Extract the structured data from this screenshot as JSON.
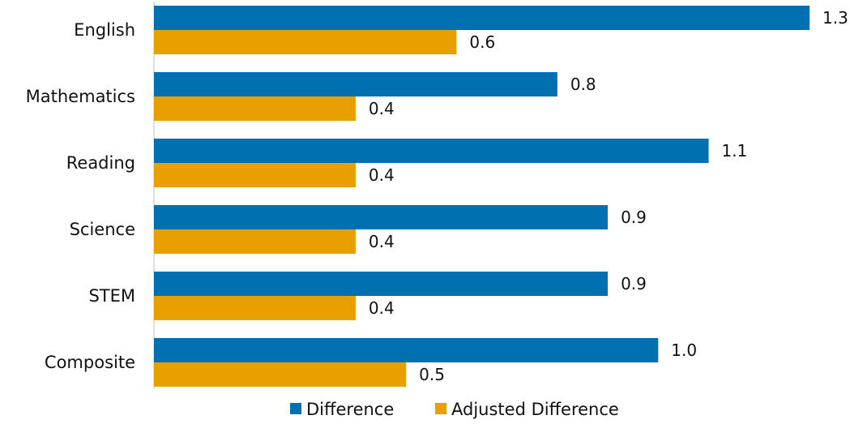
{
  "chart_data": {
    "type": "bar",
    "orientation": "horizontal",
    "categories": [
      "English",
      "Mathematics",
      "Reading",
      "Science",
      "STEM",
      "Composite"
    ],
    "series": [
      {
        "name": "Difference",
        "color": "#0070B0",
        "values": [
          1.3,
          0.8,
          1.1,
          0.9,
          0.9,
          1.0
        ],
        "labels": [
          "1.3",
          "0.8",
          "1.1",
          "0.9",
          "0.9",
          "1.0"
        ]
      },
      {
        "name": "Adjusted Difference",
        "color": "#E8A000",
        "values": [
          0.6,
          0.4,
          0.4,
          0.4,
          0.4,
          0.5
        ],
        "labels": [
          "0.6",
          "0.4",
          "0.4",
          "0.4",
          "0.4",
          "0.5"
        ]
      }
    ],
    "xlim": [
      0,
      1.3
    ],
    "grid": false,
    "legend_position": "bottom"
  }
}
